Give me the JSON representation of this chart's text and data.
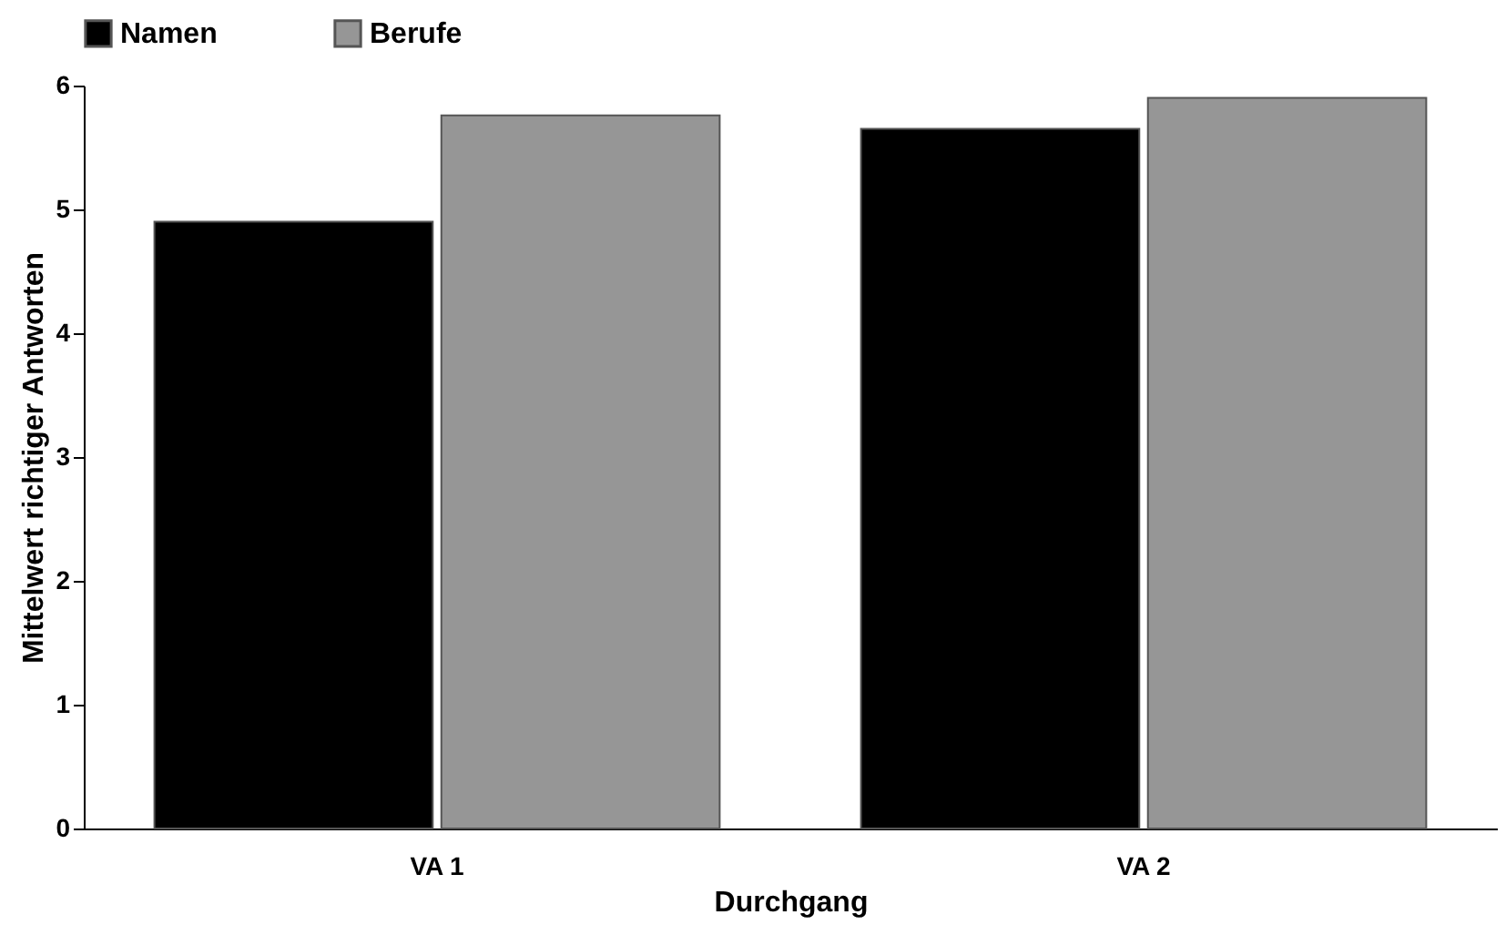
{
  "chart_data": {
    "type": "bar",
    "xlabel": "Durchgang",
    "ylabel": "Mittelwert richtiger Antworten",
    "categories": [
      "VA 1",
      "VA 2"
    ],
    "series": [
      {
        "name": "Namen",
        "color": "#000000",
        "values": [
          4.9,
          5.65
        ]
      },
      {
        "name": "Berufe",
        "color": "#969696",
        "values": [
          5.76,
          5.9
        ]
      }
    ],
    "ylim": [
      0,
      6
    ],
    "yticks": [
      0,
      1,
      2,
      3,
      4,
      5,
      6
    ],
    "grid": false,
    "legend": "top"
  }
}
